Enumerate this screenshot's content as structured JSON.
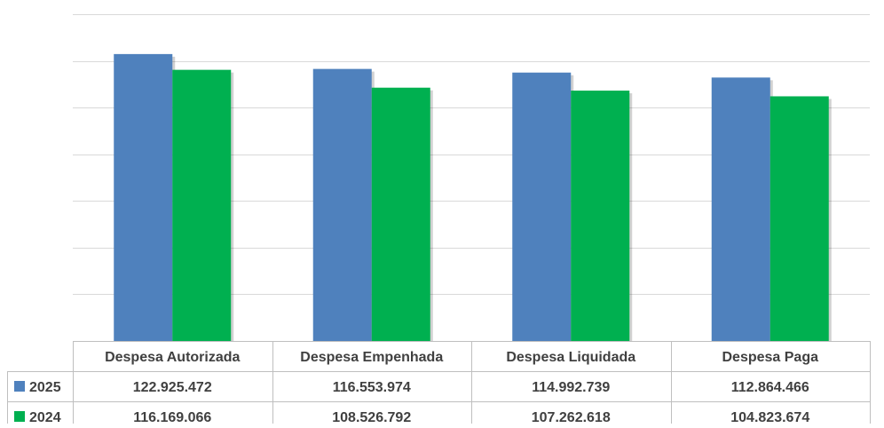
{
  "chart_data": {
    "type": "bar",
    "categories": [
      "Despesa Autorizada",
      "Despesa Empenhada",
      "Despesa Liquidada",
      "Despesa Paga"
    ],
    "series": [
      {
        "name": "2025",
        "color": "#4F81BD",
        "values": [
          122925472,
          116553974,
          114992739,
          112864466
        ],
        "labels": [
          "122.925.472",
          "116.553.974",
          "114.992.739",
          "112.864.466"
        ]
      },
      {
        "name": "2024",
        "color": "#00B050",
        "values": [
          116169066,
          108526792,
          107262618,
          104823674
        ],
        "labels": [
          "116.169.066",
          "108.526.792",
          "107.262.618",
          "104.823.674"
        ]
      }
    ],
    "ylim": [
      0,
      140000000
    ],
    "grid": true,
    "legend": "data-table-left",
    "data_table": true
  }
}
